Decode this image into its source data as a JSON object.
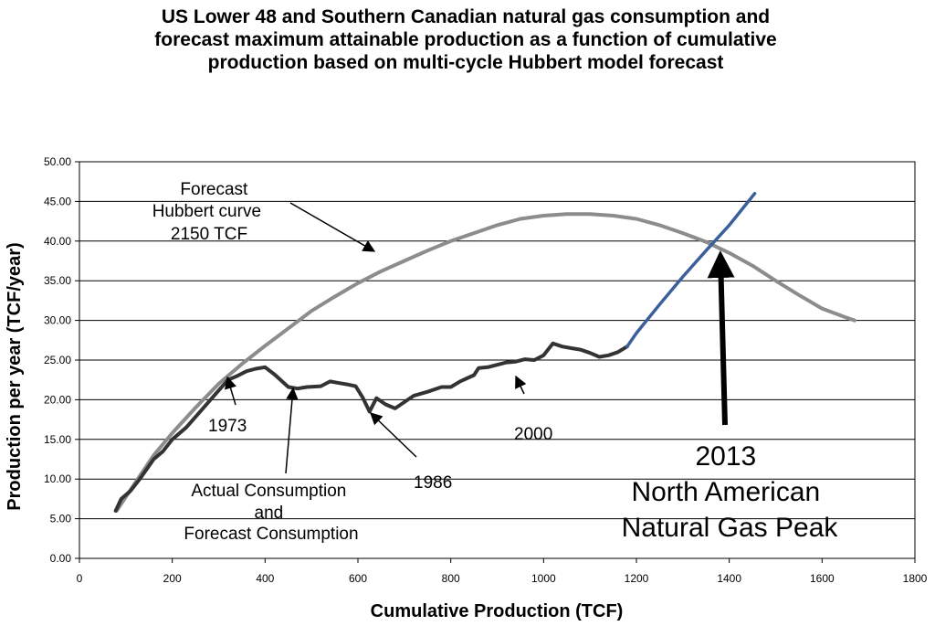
{
  "chart_data": {
    "type": "line",
    "title_lines": [
      "US Lower 48 and Southern Canadian natural gas consumption and",
      "forecast maximum attainable production as a function of cumulative",
      "production based on multi-cycle Hubbert model forecast"
    ],
    "xlabel": "Cumulative Production (TCF)",
    "ylabel": "Production per year (TCF/year)",
    "xlim": [
      0,
      1800
    ],
    "ylim": [
      0,
      50
    ],
    "xticks": [
      0,
      200,
      400,
      600,
      800,
      1000,
      1200,
      1400,
      1600,
      1800
    ],
    "xtick_labels": [
      "0",
      "200",
      "400",
      "600",
      "800",
      "1000",
      "1200",
      "1400",
      "1600",
      "1800"
    ],
    "yticks": [
      0,
      5,
      10,
      15,
      20,
      25,
      30,
      35,
      40,
      45,
      50
    ],
    "ytick_labels": [
      "0.00",
      "5.00",
      "10.00",
      "15.00",
      "20.00",
      "25.00",
      "30.00",
      "35.00",
      "40.00",
      "45.00",
      "50.00"
    ],
    "grid": true,
    "colors": {
      "hubbert": "#8c8c8c",
      "actual": "#333333",
      "forecast": "#3a5f9a",
      "arrow": "#000000"
    },
    "series": [
      {
        "name": "Forecast Hubbert curve",
        "points": [
          [
            80,
            6
          ],
          [
            120,
            9.5
          ],
          [
            160,
            13
          ],
          [
            200,
            15.8
          ],
          [
            250,
            19
          ],
          [
            300,
            22
          ],
          [
            350,
            24.5
          ],
          [
            400,
            26.8
          ],
          [
            450,
            29
          ],
          [
            500,
            31.2
          ],
          [
            550,
            33
          ],
          [
            600,
            34.7
          ],
          [
            650,
            36.2
          ],
          [
            700,
            37.5
          ],
          [
            750,
            38.8
          ],
          [
            800,
            40
          ],
          [
            850,
            41
          ],
          [
            900,
            42
          ],
          [
            950,
            42.8
          ],
          [
            1000,
            43.2
          ],
          [
            1050,
            43.4
          ],
          [
            1100,
            43.4
          ],
          [
            1150,
            43.2
          ],
          [
            1200,
            42.8
          ],
          [
            1250,
            42
          ],
          [
            1300,
            41
          ],
          [
            1350,
            39.9
          ],
          [
            1400,
            38.5
          ],
          [
            1450,
            36.9
          ],
          [
            1500,
            35
          ],
          [
            1550,
            33.2
          ],
          [
            1600,
            31.5
          ],
          [
            1650,
            30.4
          ],
          [
            1670,
            30
          ]
        ]
      },
      {
        "name": "Actual Consumption",
        "points": [
          [
            78,
            6
          ],
          [
            90,
            7.5
          ],
          [
            110,
            8.5
          ],
          [
            130,
            10
          ],
          [
            160,
            12.5
          ],
          [
            180,
            13.5
          ],
          [
            200,
            15
          ],
          [
            230,
            16.5
          ],
          [
            260,
            18.5
          ],
          [
            290,
            20.5
          ],
          [
            320,
            22.5
          ],
          [
            340,
            23
          ],
          [
            360,
            23.6
          ],
          [
            380,
            23.9
          ],
          [
            400,
            24.1
          ],
          [
            420,
            23.2
          ],
          [
            450,
            21.6
          ],
          [
            470,
            21.4
          ],
          [
            490,
            21.6
          ],
          [
            520,
            21.7
          ],
          [
            540,
            22.3
          ],
          [
            560,
            22.1
          ],
          [
            580,
            21.9
          ],
          [
            595,
            21.7
          ],
          [
            610,
            20.3
          ],
          [
            625,
            18.5
          ],
          [
            640,
            20.2
          ],
          [
            660,
            19.4
          ],
          [
            680,
            18.9
          ],
          [
            700,
            19.7
          ],
          [
            720,
            20.5
          ],
          [
            750,
            21
          ],
          [
            780,
            21.6
          ],
          [
            800,
            21.6
          ],
          [
            820,
            22.3
          ],
          [
            850,
            23.1
          ],
          [
            860,
            24
          ],
          [
            880,
            24.1
          ],
          [
            900,
            24.4
          ],
          [
            920,
            24.7
          ],
          [
            940,
            24.8
          ],
          [
            960,
            25.1
          ],
          [
            980,
            25
          ],
          [
            1000,
            25.6
          ],
          [
            1020,
            27.1
          ],
          [
            1040,
            26.7
          ],
          [
            1060,
            26.5
          ],
          [
            1080,
            26.3
          ],
          [
            1100,
            25.9
          ],
          [
            1120,
            25.4
          ],
          [
            1140,
            25.6
          ],
          [
            1160,
            26
          ],
          [
            1180,
            26.7
          ]
        ]
      },
      {
        "name": "Forecast Consumption",
        "points": [
          [
            1180,
            26.7
          ],
          [
            1200,
            28.4
          ],
          [
            1250,
            32
          ],
          [
            1300,
            35.5
          ],
          [
            1350,
            38.8
          ],
          [
            1400,
            42
          ],
          [
            1455,
            46
          ]
        ]
      }
    ],
    "annotations": [
      {
        "lines": [
          "Forecast",
          "Hubbert curve",
          "2150 TCF"
        ]
      },
      {
        "lines": [
          "1973"
        ]
      },
      {
        "lines": [
          "Actual Consumption",
          "and",
          "Forecast Consumption"
        ]
      },
      {
        "lines": [
          "1986"
        ]
      },
      {
        "lines": [
          "2000"
        ]
      },
      {
        "lines": [
          "2013",
          "North American",
          "Natural Gas Peak"
        ]
      }
    ]
  }
}
